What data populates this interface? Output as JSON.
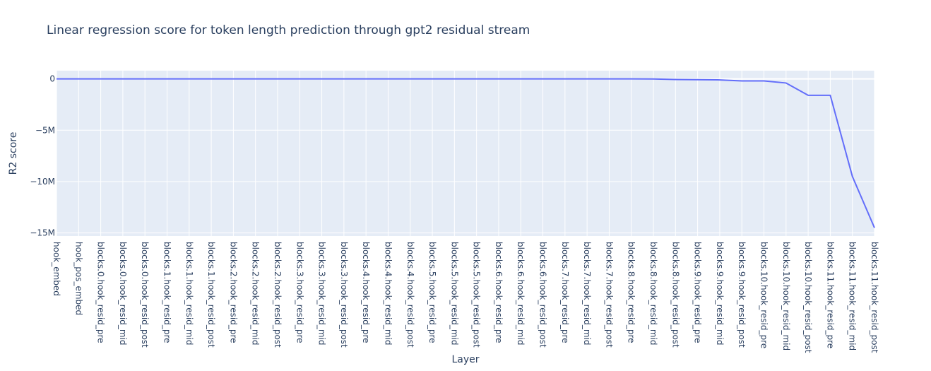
{
  "chart_data": {
    "type": "line",
    "title": "Linear regression score for token length prediction through gpt2 residual stream",
    "xlabel": "Layer",
    "ylabel": "R2 score",
    "grid": true,
    "ylim": [
      -15300000,
      800000
    ],
    "yticks": [
      0,
      -5000000,
      -10000000,
      -15000000
    ],
    "ytick_labels": [
      "0",
      "−5M",
      "−10M",
      "−15M"
    ],
    "line_color": "#636efa",
    "plot_bgcolor": "#e5ecf6",
    "categories": [
      "hook_embed",
      "hook_pos_embed",
      "blocks.0.hook_resid_pre",
      "blocks.0.hook_resid_mid",
      "blocks.0.hook_resid_post",
      "blocks.1.hook_resid_pre",
      "blocks.1.hook_resid_mid",
      "blocks.1.hook_resid_post",
      "blocks.2.hook_resid_pre",
      "blocks.2.hook_resid_mid",
      "blocks.2.hook_resid_post",
      "blocks.3.hook_resid_pre",
      "blocks.3.hook_resid_mid",
      "blocks.3.hook_resid_post",
      "blocks.4.hook_resid_pre",
      "blocks.4.hook_resid_mid",
      "blocks.4.hook_resid_post",
      "blocks.5.hook_resid_pre",
      "blocks.5.hook_resid_mid",
      "blocks.5.hook_resid_post",
      "blocks.6.hook_resid_pre",
      "blocks.6.hook_resid_mid",
      "blocks.6.hook_resid_post",
      "blocks.7.hook_resid_pre",
      "blocks.7.hook_resid_mid",
      "blocks.7.hook_resid_post",
      "blocks.8.hook_resid_pre",
      "blocks.8.hook_resid_mid",
      "blocks.8.hook_resid_post",
      "blocks.9.hook_resid_pre",
      "blocks.9.hook_resid_mid",
      "blocks.9.hook_resid_post",
      "blocks.10.hook_resid_pre",
      "blocks.10.hook_resid_mid",
      "blocks.10.hook_resid_post",
      "blocks.11.hook_resid_pre",
      "blocks.11.hook_resid_mid",
      "blocks.11.hook_resid_post"
    ],
    "values": [
      0,
      0,
      0,
      0,
      0,
      0,
      0,
      0,
      0,
      0,
      0,
      0,
      0,
      0,
      0,
      0,
      0,
      0,
      0,
      0,
      0,
      0,
      0,
      0,
      0,
      0,
      0,
      -10000,
      -60000,
      -80000,
      -100000,
      -200000,
      -200000,
      -400000,
      -1600000,
      -1600000,
      -9500000,
      -14500000
    ]
  }
}
